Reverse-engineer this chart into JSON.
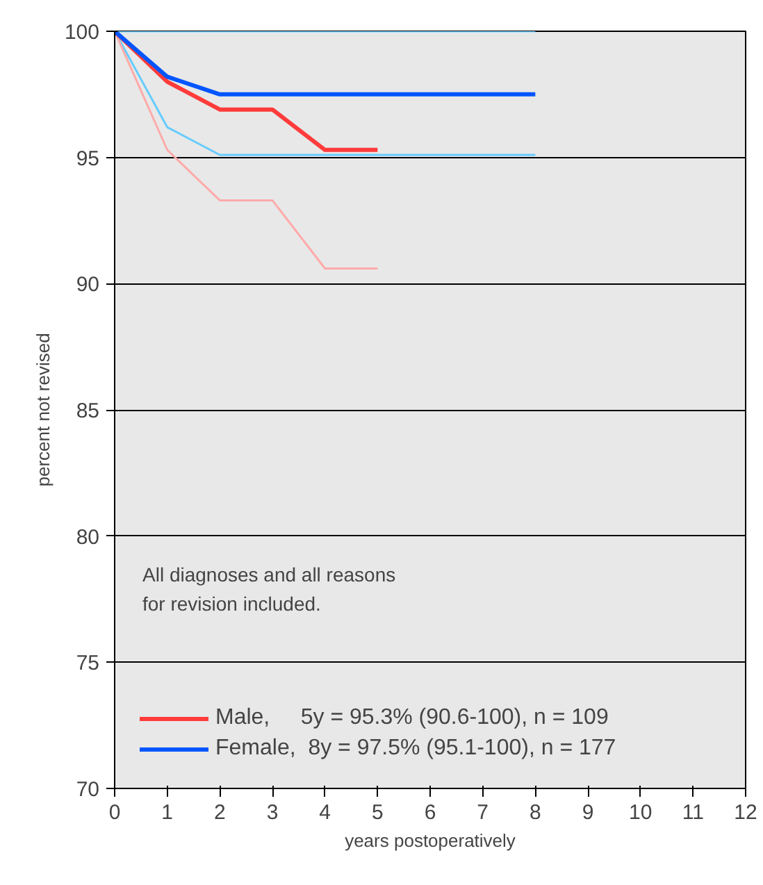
{
  "chart_data": {
    "type": "line",
    "xlabel": "years postoperatively",
    "ylabel": "percent not revised",
    "annotations": [
      "All diagnoses and all reasons\nfor revision included."
    ],
    "x": [
      0,
      1,
      2,
      3,
      4,
      5,
      6,
      7,
      8
    ],
    "series": [
      {
        "color": "#66ccff",
        "values": [
          100,
          100,
          100,
          100,
          100,
          100,
          100,
          100,
          100
        ]
      },
      {
        "color": "#66ccff",
        "values": [
          100,
          96.2,
          95.1,
          95.1,
          95.1,
          95.1,
          95.1,
          95.1,
          95.1
        ]
      },
      {
        "color": "#ffaaaa",
        "values": [
          100,
          95.3,
          93.3,
          93.3,
          90.6,
          90.6,
          null,
          null,
          null
        ]
      },
      {
        "name": "Male,     5y = 95.3% (90.6-100), n = 109",
        "color": "#ff3b3b",
        "values": [
          100,
          98.0,
          96.9,
          96.9,
          95.3,
          95.3,
          null,
          null,
          null
        ]
      },
      {
        "name": "Female,  8y = 97.5% (95.1-100), n = 177",
        "color": "#0055ff",
        "values": [
          100,
          98.2,
          97.5,
          97.5,
          97.5,
          97.5,
          97.5,
          97.5,
          97.5
        ]
      }
    ],
    "xlim": [
      0,
      12
    ],
    "ylim": [
      70,
      100
    ],
    "xticks": [
      0,
      1,
      2,
      3,
      4,
      5,
      6,
      7,
      8,
      9,
      10,
      11,
      12
    ],
    "yticks": [
      70,
      75,
      80,
      85,
      90,
      95,
      100
    ],
    "grid": "y",
    "legend": "bottom left",
    "marker": "none",
    "line_style": "solid"
  }
}
